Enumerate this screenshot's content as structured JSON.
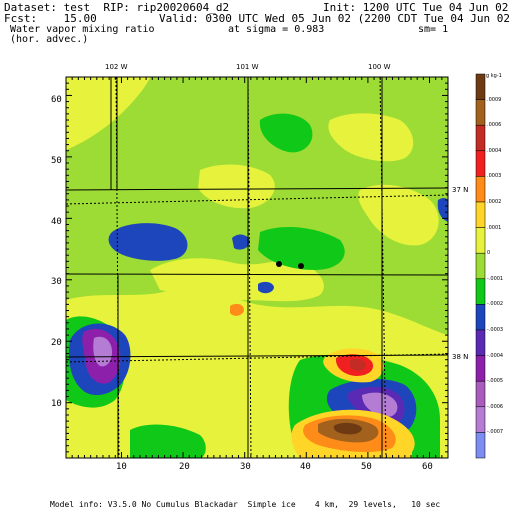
{
  "header": {
    "dataset": "Dataset: test  RIP: rip20020604_d2",
    "init": "Init: 1200 UTC Tue 04 Jun 02",
    "fcst": "Fcst:    15.00",
    "valid": "Valid: 0300 UTC Wed 05 Jun 02 (2200 CDT Tue 04 Jun 02)",
    "field": " Water vapor mixing ratio",
    "sigma": "at sigma = 0.983",
    "sm": "sm= 1",
    "advec": " (hor. advec.)"
  },
  "axes": {
    "x_ticks": [
      "10",
      "20",
      "30",
      "40",
      "50",
      "60"
    ],
    "y_ticks": [
      "10",
      "20",
      "30",
      "40",
      "50",
      "60"
    ],
    "longitudes": [
      "102 W",
      "101 W",
      "100 W"
    ],
    "latitudes": [
      "37 N",
      "38 N"
    ]
  },
  "colorbar": {
    "unit": "g kg-1",
    "labels": [
      ".0009",
      ".0006",
      ".0004",
      ".0003",
      ".0002",
      ".0001",
      "0",
      "-.0001",
      "-.0002",
      "-.0003",
      "-.0004",
      "-.0005",
      "-.0006",
      "-.0007"
    ],
    "colors": [
      "#6e3a14",
      "#a2611c",
      "#c22c24",
      "#f02020",
      "#ff8c18",
      "#ffd628",
      "#e6f23c",
      "#9cdc34",
      "#10c818",
      "#1e46bc",
      "#5a2ab4",
      "#8c20aa",
      "#aa5cbc",
      "#b47cd2",
      "#7c8cf0"
    ]
  },
  "footer": "Model info: V3.5.0 No Cumulus Blackadar  Simple ice    4 km,  29 levels,   10 sec",
  "colors": {
    "background": "#10c818",
    "accent": "#e6f23c"
  }
}
